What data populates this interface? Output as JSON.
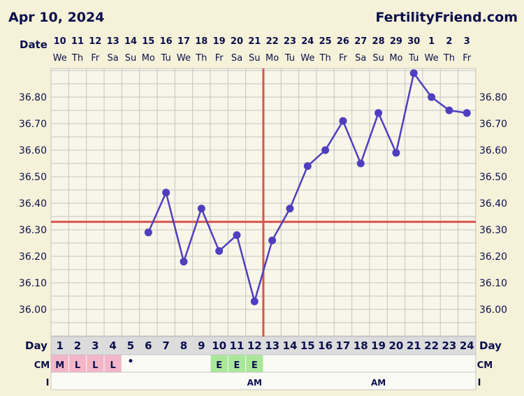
{
  "header": {
    "chart_date": "Apr 10, 2024",
    "brand": "FertilityFriend.com"
  },
  "labels": {
    "date_row": "Date",
    "day_row": "Day",
    "cm_row": "CM",
    "i_row": "I"
  },
  "colors": {
    "background": "#f6f2d9",
    "grid": "#c4c4c4",
    "plot_bg": "#f8f6e8",
    "line": "#4f3fbf",
    "coverline": "#d9534f",
    "text": "#0b0f4d",
    "cm_menstrual": "#f2b6c8",
    "cm_eggwhite": "#a9e79a",
    "day_row_bg": "#dcdcdc"
  },
  "chart_data": {
    "type": "line",
    "title": "",
    "dates": [
      "10",
      "11",
      "12",
      "13",
      "14",
      "15",
      "16",
      "17",
      "18",
      "19",
      "20",
      "21",
      "22",
      "23",
      "24",
      "25",
      "26",
      "27",
      "28",
      "29",
      "30",
      "1",
      "2",
      "3"
    ],
    "weekdays": [
      "We",
      "Th",
      "Fr",
      "Sa",
      "Su",
      "Mo",
      "Tu",
      "We",
      "Th",
      "Fr",
      "Sa",
      "Su",
      "Mo",
      "Tu",
      "We",
      "Th",
      "Fr",
      "Sa",
      "Su",
      "Mo",
      "Tu",
      "We",
      "Th",
      "Fr"
    ],
    "cycle_days": [
      "1",
      "2",
      "3",
      "4",
      "5",
      "6",
      "7",
      "8",
      "9",
      "10",
      "11",
      "12",
      "13",
      "14",
      "15",
      "16",
      "17",
      "18",
      "19",
      "20",
      "21",
      "22",
      "23",
      "24"
    ],
    "temperatures": [
      null,
      null,
      null,
      null,
      null,
      36.29,
      36.44,
      36.18,
      36.38,
      36.22,
      36.28,
      36.03,
      36.26,
      36.38,
      36.54,
      36.6,
      36.71,
      36.55,
      36.74,
      36.59,
      36.89,
      36.8,
      36.75,
      36.74
    ],
    "y_ticks": [
      "36.00",
      "36.10",
      "36.20",
      "36.30",
      "36.40",
      "36.50",
      "36.60",
      "36.70",
      "36.80"
    ],
    "ylim": [
      35.9,
      36.9
    ],
    "coverline": 36.33,
    "ovulation_day": 13,
    "cervical_mucus": [
      "M",
      "L",
      "L",
      "L",
      "•",
      "",
      "",
      "",
      "",
      "E",
      "E",
      "E",
      "",
      "",
      "",
      "",
      "",
      "",
      "",
      "",
      "",
      "",
      "",
      ""
    ],
    "cm_colors": [
      "menstrual",
      "menstrual",
      "menstrual",
      "menstrual",
      "",
      "",
      "",
      "",
      "",
      "eggwhite",
      "eggwhite",
      "eggwhite",
      "",
      "",
      "",
      "",
      "",
      "",
      "",
      "",
      "",
      "",
      "",
      ""
    ],
    "intercourse": [
      "",
      "",
      "",
      "",
      "",
      "",
      "",
      "",
      "",
      "",
      "",
      "AM",
      "",
      "",
      "",
      "",
      "",
      "",
      "AM",
      "",
      "",
      "",
      "",
      ""
    ],
    "grid": true
  }
}
